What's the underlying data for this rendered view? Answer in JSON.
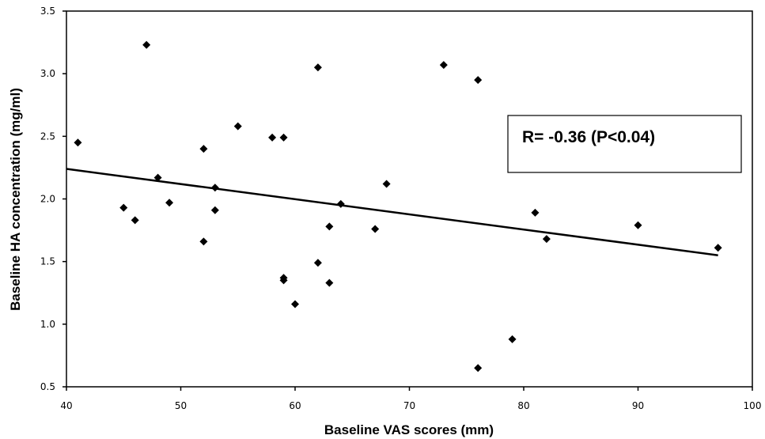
{
  "chart_data": {
    "type": "scatter",
    "title": "",
    "xlabel": "Baseline VAS scores (mm)",
    "ylabel": "Baseline HA concentration (mg/ml)",
    "xlim": [
      40,
      100
    ],
    "ylim": [
      0.5,
      3.5
    ],
    "x_ticks": [
      "40",
      "50",
      "60",
      "70",
      "80",
      "90",
      "100"
    ],
    "y_ticks": [
      "0.5",
      "1.0",
      "1.5",
      "2.0",
      "2.5",
      "3.0",
      "3.5"
    ],
    "grid": false,
    "legend": "none",
    "marker_color": "#000000",
    "points": [
      {
        "x": 41,
        "y": 2.45
      },
      {
        "x": 45,
        "y": 1.93
      },
      {
        "x": 46,
        "y": 1.83
      },
      {
        "x": 47,
        "y": 3.23
      },
      {
        "x": 48,
        "y": 2.17
      },
      {
        "x": 49,
        "y": 1.97
      },
      {
        "x": 52,
        "y": 2.4
      },
      {
        "x": 52,
        "y": 1.66
      },
      {
        "x": 53,
        "y": 2.09
      },
      {
        "x": 53,
        "y": 1.91
      },
      {
        "x": 55,
        "y": 2.58
      },
      {
        "x": 58,
        "y": 2.49
      },
      {
        "x": 59,
        "y": 2.49
      },
      {
        "x": 59,
        "y": 1.37
      },
      {
        "x": 59,
        "y": 1.35
      },
      {
        "x": 60,
        "y": 1.16
      },
      {
        "x": 62,
        "y": 3.05
      },
      {
        "x": 62,
        "y": 1.49
      },
      {
        "x": 63,
        "y": 1.78
      },
      {
        "x": 63,
        "y": 1.33
      },
      {
        "x": 64,
        "y": 1.96
      },
      {
        "x": 67,
        "y": 1.76
      },
      {
        "x": 68,
        "y": 2.12
      },
      {
        "x": 73,
        "y": 3.07
      },
      {
        "x": 76,
        "y": 2.95
      },
      {
        "x": 76,
        "y": 0.65
      },
      {
        "x": 79,
        "y": 0.88
      },
      {
        "x": 81,
        "y": 1.89
      },
      {
        "x": 82,
        "y": 1.68
      },
      {
        "x": 90,
        "y": 1.79
      },
      {
        "x": 97,
        "y": 1.61
      }
    ],
    "trendline": {
      "x": [
        40,
        97
      ],
      "y": [
        2.24,
        1.55
      ]
    },
    "annotation": "R= -0.36 (P<0.04)"
  }
}
